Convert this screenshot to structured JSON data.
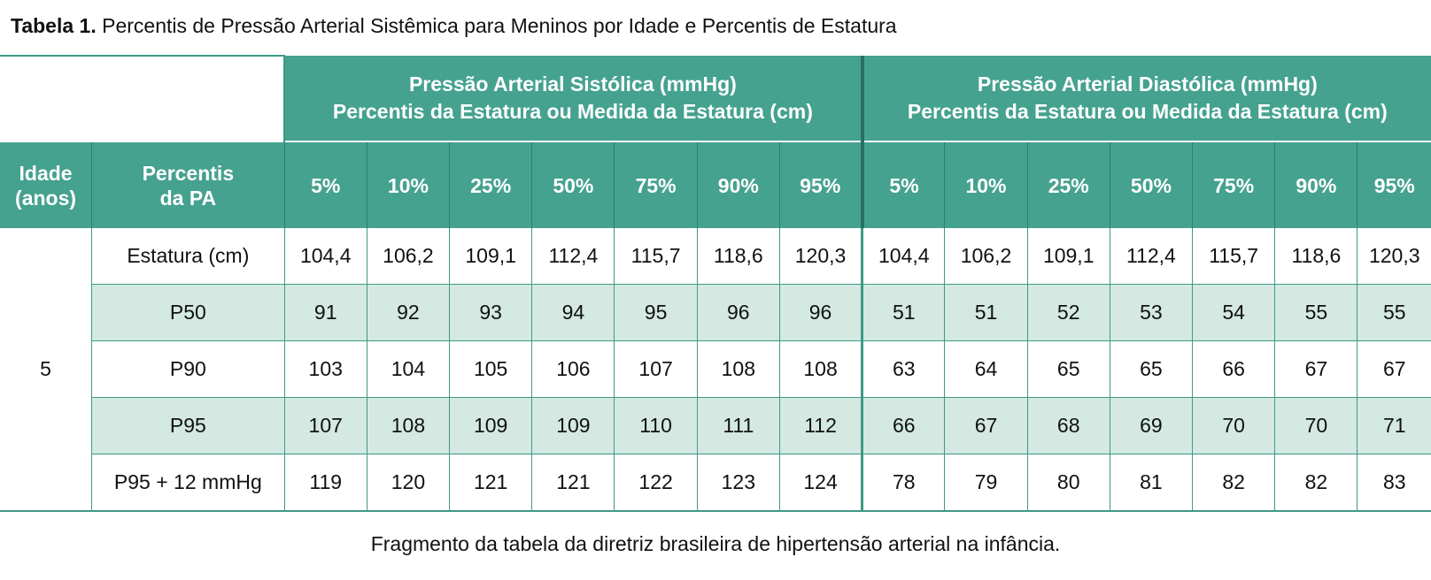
{
  "title": {
    "label": "Tabela 1.",
    "text": "Percentis de Pressão Arterial Sistêmica para Meninos por Idade e Percentis de Estatura"
  },
  "table": {
    "groups": {
      "systolic": {
        "line1": "Pressão Arterial Sistólica (mmHg)",
        "line2": "Percentis da Estatura ou Medida da Estatura (cm)"
      },
      "diastolic": {
        "line1": "Pressão Arterial Diastólica (mmHg)",
        "line2": "Percentis da Estatura ou Medida da Estatura (cm)"
      }
    },
    "col_age": {
      "line1": "Idade",
      "line2": "(anos)"
    },
    "col_pa": {
      "line1": "Percentis",
      "line2": "da PA"
    },
    "percentiles": [
      "5%",
      "10%",
      "25%",
      "50%",
      "75%",
      "90%",
      "95%"
    ],
    "age": "5",
    "rows": [
      {
        "label": "Estatura (cm)",
        "systolic": [
          "104,4",
          "106,2",
          "109,1",
          "112,4",
          "115,7",
          "118,6",
          "120,3"
        ],
        "diastolic": [
          "104,4",
          "106,2",
          "109,1",
          "112,4",
          "115,7",
          "118,6",
          "120,3"
        ]
      },
      {
        "label": "P50",
        "systolic": [
          "91",
          "92",
          "93",
          "94",
          "95",
          "96",
          "96"
        ],
        "diastolic": [
          "51",
          "51",
          "52",
          "53",
          "54",
          "55",
          "55"
        ]
      },
      {
        "label": "P90",
        "systolic": [
          "103",
          "104",
          "105",
          "106",
          "107",
          "108",
          "108"
        ],
        "diastolic": [
          "63",
          "64",
          "65",
          "65",
          "66",
          "67",
          "67"
        ]
      },
      {
        "label": "P95",
        "systolic": [
          "107",
          "108",
          "109",
          "109",
          "110",
          "111",
          "112"
        ],
        "diastolic": [
          "66",
          "67",
          "68",
          "69",
          "70",
          "70",
          "71"
        ]
      },
      {
        "label": "P95 + 12 mmHg",
        "systolic": [
          "119",
          "120",
          "121",
          "121",
          "122",
          "123",
          "124"
        ],
        "diastolic": [
          "78",
          "79",
          "80",
          "81",
          "82",
          "82",
          "83"
        ]
      }
    ]
  },
  "caption": "Fragmento da tabela da diretriz brasileira de hipertensão arterial na infância.",
  "colors": {
    "header_green": "#45a28f",
    "row_shade": "#d3e9e2",
    "border_green": "#3f9a85"
  }
}
